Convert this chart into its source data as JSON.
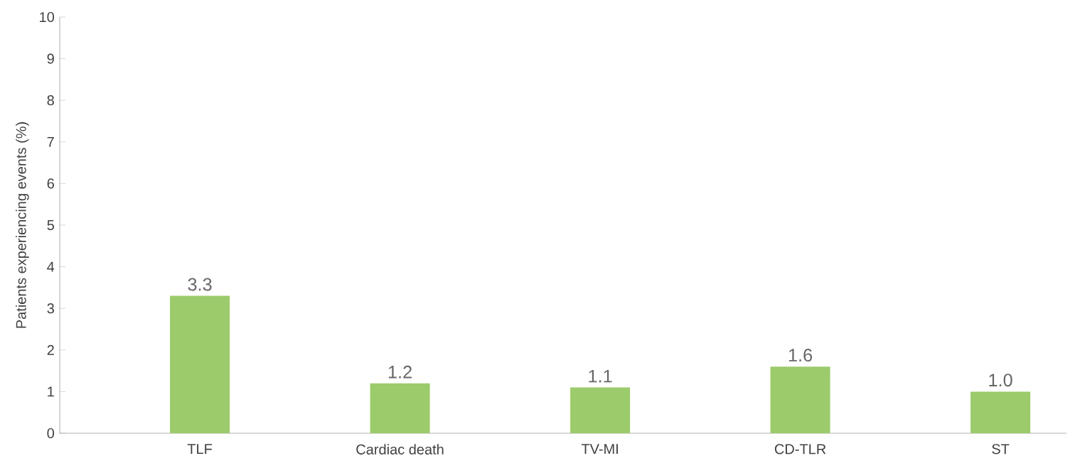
{
  "chart_data": {
    "type": "bar",
    "ylabel": "Patients experiencing events (%)",
    "categories": [
      "TLF",
      "Cardiac death",
      "TV-MI",
      "CD-TLR",
      "ST"
    ],
    "values": [
      3.3,
      1.2,
      1.1,
      1.6,
      1.0
    ],
    "color": "#9bcb6b",
    "ylim": [
      0,
      10
    ],
    "yticks": [
      0,
      1,
      2,
      3,
      4,
      5,
      6,
      7,
      8,
      9,
      10
    ],
    "value_labels": [
      "3.3",
      "1.2",
      "1.1",
      "1.6",
      "1.0"
    ],
    "grid": false
  }
}
